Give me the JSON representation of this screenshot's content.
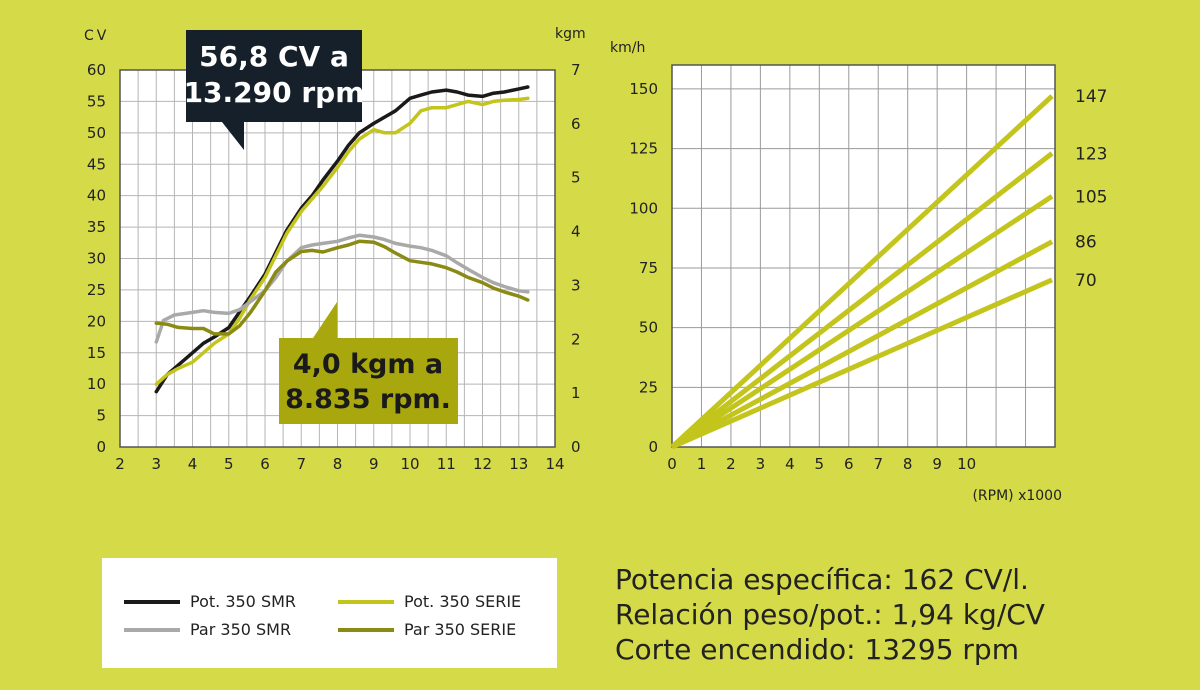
{
  "chart_data": [
    {
      "type": "line",
      "title": "",
      "xlabel": "",
      "ylabel_left": "CV",
      "ylabel_right": "kgm",
      "x_ticks": [
        "2",
        "3",
        "4",
        "5",
        "6",
        "7",
        "8",
        "9",
        "10",
        "11",
        "12",
        "13",
        "14"
      ],
      "y_left_ticks": [
        "0",
        "5",
        "10",
        "15",
        "20",
        "25",
        "30",
        "35",
        "40",
        "45",
        "50",
        "55",
        "60"
      ],
      "y_right_ticks": [
        "0",
        "1",
        "2",
        "3",
        "4",
        "5",
        "6",
        "7"
      ],
      "xlim": [
        2,
        14
      ],
      "ylim_left": [
        0,
        60
      ],
      "ylim_right": [
        0,
        7
      ],
      "grid": true,
      "series": [
        {
          "name": "Pot. 350 SMR",
          "axis": "left",
          "color": "#1a1a1a",
          "x": [
            3,
            3.3,
            3.6,
            4,
            4.3,
            4.6,
            5,
            5.3,
            5.6,
            6,
            6.3,
            6.6,
            7,
            7.3,
            7.6,
            8,
            8.3,
            8.6,
            9,
            9.3,
            9.6,
            10,
            10.3,
            10.6,
            11,
            11.3,
            11.6,
            12,
            12.3,
            12.6,
            13,
            13.25
          ],
          "y": [
            8.8,
            11.5,
            13.0,
            15.0,
            16.5,
            17.5,
            19.0,
            21.5,
            24.0,
            27.5,
            31.0,
            34.5,
            38.0,
            40.0,
            42.5,
            45.5,
            48.0,
            50.0,
            51.5,
            52.5,
            53.5,
            55.5,
            56.0,
            56.5,
            56.8,
            56.5,
            56.0,
            55.8,
            56.3,
            56.5,
            57.0,
            57.3
          ]
        },
        {
          "name": "Pot. 350 SERIE",
          "axis": "left",
          "color": "#c3c51d",
          "x": [
            3,
            3.3,
            3.6,
            4,
            4.3,
            4.6,
            5,
            5.3,
            5.6,
            6,
            6.3,
            6.6,
            7,
            7.3,
            7.6,
            8,
            8.3,
            8.6,
            9,
            9.3,
            9.6,
            10,
            10.3,
            10.6,
            11,
            11.3,
            11.6,
            12,
            12.3,
            12.6,
            13,
            13.25
          ],
          "y": [
            10.0,
            11.5,
            12.5,
            13.5,
            15.0,
            16.5,
            18.0,
            20.5,
            23.5,
            27.0,
            30.5,
            34.0,
            37.5,
            39.5,
            41.5,
            44.5,
            47.0,
            49.0,
            50.5,
            50.0,
            50.0,
            51.5,
            53.5,
            54.0,
            54.0,
            54.5,
            55.0,
            54.5,
            55.0,
            55.2,
            55.3,
            55.5
          ]
        },
        {
          "name": "Par 350 SMR",
          "axis": "right",
          "color": "#a9a9a9",
          "x": [
            3,
            3.2,
            3.5,
            4,
            4.3,
            4.6,
            5,
            5.3,
            5.6,
            6,
            6.3,
            6.6,
            7,
            7.3,
            7.6,
            8,
            8.3,
            8.6,
            9,
            9.3,
            9.6,
            10,
            10.3,
            10.6,
            11,
            11.3,
            11.6,
            12,
            12.3,
            12.6,
            13,
            13.25
          ],
          "y": [
            1.95,
            2.35,
            2.45,
            2.5,
            2.53,
            2.5,
            2.48,
            2.55,
            2.7,
            2.9,
            3.15,
            3.45,
            3.7,
            3.75,
            3.78,
            3.82,
            3.88,
            3.93,
            3.9,
            3.85,
            3.78,
            3.73,
            3.7,
            3.65,
            3.55,
            3.42,
            3.3,
            3.15,
            3.05,
            2.98,
            2.9,
            2.88
          ]
        },
        {
          "name": "Par 350 SERIE",
          "axis": "right",
          "color": "#8a8a15",
          "x": [
            3,
            3.3,
            3.6,
            4,
            4.3,
            4.6,
            5,
            5.3,
            5.6,
            6,
            6.3,
            6.6,
            7,
            7.3,
            7.6,
            8,
            8.3,
            8.6,
            9,
            9.3,
            9.6,
            10,
            10.3,
            10.6,
            11,
            11.3,
            11.6,
            12,
            12.3,
            12.6,
            13,
            13.25
          ],
          "y": [
            2.3,
            2.28,
            2.22,
            2.2,
            2.2,
            2.1,
            2.1,
            2.25,
            2.5,
            2.9,
            3.25,
            3.45,
            3.63,
            3.65,
            3.62,
            3.7,
            3.75,
            3.82,
            3.8,
            3.72,
            3.6,
            3.46,
            3.43,
            3.4,
            3.33,
            3.25,
            3.15,
            3.05,
            2.95,
            2.88,
            2.8,
            2.73
          ]
        }
      ]
    },
    {
      "type": "line",
      "title": "",
      "xlabel": "(RPM) x1000",
      "ylabel": "km/h",
      "x_ticks": [
        "0",
        "1",
        "2",
        "3",
        "4",
        "5",
        "6",
        "7",
        "8",
        "9",
        "10"
      ],
      "y_ticks": [
        "0",
        "25",
        "50",
        "75",
        "100",
        "125",
        "150"
      ],
      "xlim": [
        0,
        13
      ],
      "ylim": [
        0,
        160
      ],
      "grid": true,
      "series_end_x": 12.9,
      "series": [
        {
          "end_label": "147",
          "end_value": 147,
          "color": "#c3c51d"
        },
        {
          "end_label": "123",
          "end_value": 123,
          "color": "#c3c51d"
        },
        {
          "end_label": "105",
          "end_value": 105,
          "color": "#c3c51d"
        },
        {
          "end_label": "86",
          "end_value": 86,
          "color": "#c3c51d"
        },
        {
          "end_label": "70",
          "end_value": 70,
          "color": "#c3c51d"
        }
      ]
    }
  ],
  "annotations": {
    "power_callout": [
      "56,8 CV a",
      "13.290 rpm"
    ],
    "torque_callout": [
      "4,0 kgm a",
      "8.835 rpm."
    ]
  },
  "legend": [
    {
      "label": "Pot. 350 SMR",
      "color": "#1a1a1a"
    },
    {
      "label": "Pot. 350 SERIE",
      "color": "#c3c51d"
    },
    {
      "label": "Par 350 SMR",
      "color": "#a9a9a9"
    },
    {
      "label": "Par 350 SERIE",
      "color": "#8a8a15"
    }
  ],
  "specs": [
    {
      "label": "Potencia específica:",
      "value": "162 CV/l."
    },
    {
      "label": "Relación peso/pot.:",
      "value": "1,94 kg/CV"
    },
    {
      "label": "Corte encendido:",
      "value": "13295 rpm"
    }
  ],
  "colors": {
    "background": "#d5da48",
    "callout_dark": "#16202a",
    "callout_olive": "#a8a80e"
  }
}
